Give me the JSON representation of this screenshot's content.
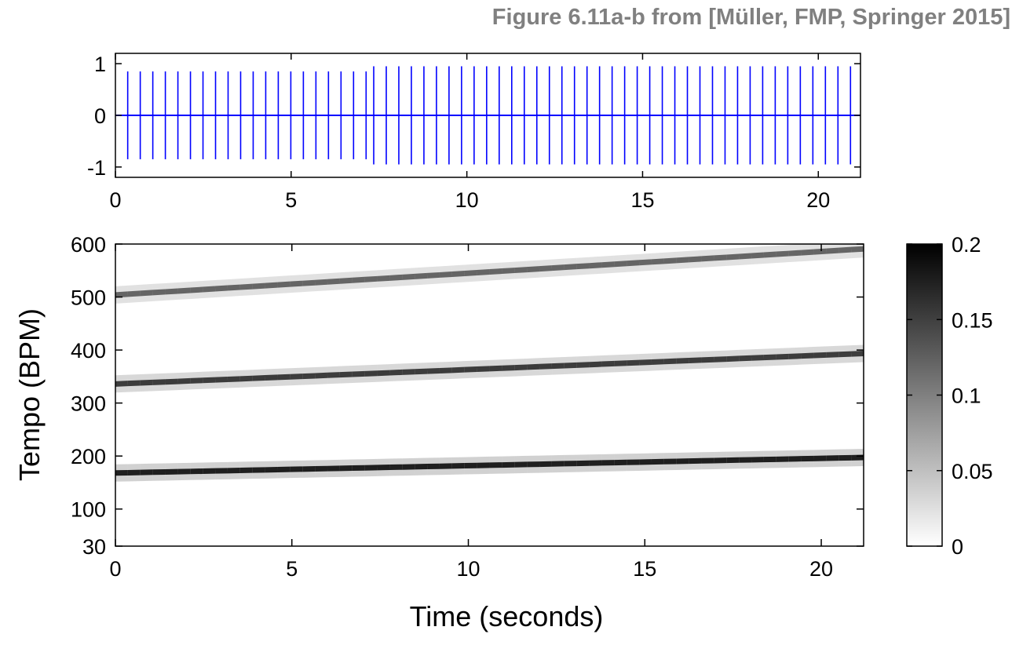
{
  "caption": "Figure 6.11a-b from [Müller, FMP, Springer 2015]",
  "colors": {
    "waveform": "#0000ff",
    "axes": "#000000",
    "caption": "#808080",
    "background": "#ffffff"
  },
  "chart_data": [
    {
      "type": "line",
      "title": "",
      "xlabel": "",
      "ylabel": "",
      "xlim": [
        0,
        21.2
      ],
      "ylim": [
        -1.2,
        1.2
      ],
      "x_ticks": [
        0,
        5,
        10,
        15,
        20
      ],
      "x_tick_labels": [
        "0",
        "5",
        "10",
        "15",
        "20"
      ],
      "y_ticks": [
        1,
        0,
        -1
      ],
      "y_tick_labels": [
        "1",
        "0",
        "-1"
      ],
      "series": [
        {
          "kind": "click-track",
          "segments": [
            {
              "t_start": 0.35,
              "t_end": 7.15,
              "period_s": 0.357,
              "amplitude": 0.85
            },
            {
              "t_start": 7.35,
              "t_end": 20.95,
              "period_s": 0.357,
              "amplitude": 0.95
            }
          ]
        }
      ]
    },
    {
      "type": "heatmap",
      "title": "",
      "xlabel": "Time (seconds)",
      "ylabel": "Tempo (BPM)",
      "xlim": [
        0,
        21.2
      ],
      "ylim": [
        30,
        600
      ],
      "x_ticks": [
        0,
        5,
        10,
        15,
        20
      ],
      "x_tick_labels": [
        "0",
        "5",
        "10",
        "15",
        "20"
      ],
      "y_ticks": [
        30,
        100,
        200,
        300,
        400,
        500,
        600
      ],
      "y_tick_labels": [
        "30",
        "100",
        "200",
        "300",
        "400",
        "500",
        "600"
      ],
      "colormap": "gray_reversed",
      "colorbar": {
        "min": 0,
        "max": 0.2,
        "ticks": [
          0,
          0.05,
          0.1,
          0.15,
          0.2
        ],
        "tick_labels": [
          "0",
          "0.05",
          "0.1",
          "0.15",
          "0.2"
        ]
      },
      "tempo_curves": [
        {
          "harmonic": 1,
          "bpm_at_0s": 168,
          "bpm_at_21s": 197,
          "peak_value": 0.2
        },
        {
          "harmonic": 2,
          "bpm_at_0s": 336,
          "bpm_at_21s": 393,
          "peak_value": 0.17
        },
        {
          "harmonic": 3,
          "bpm_at_0s": 504,
          "bpm_at_21s": 590,
          "peak_value": 0.13
        }
      ]
    }
  ]
}
